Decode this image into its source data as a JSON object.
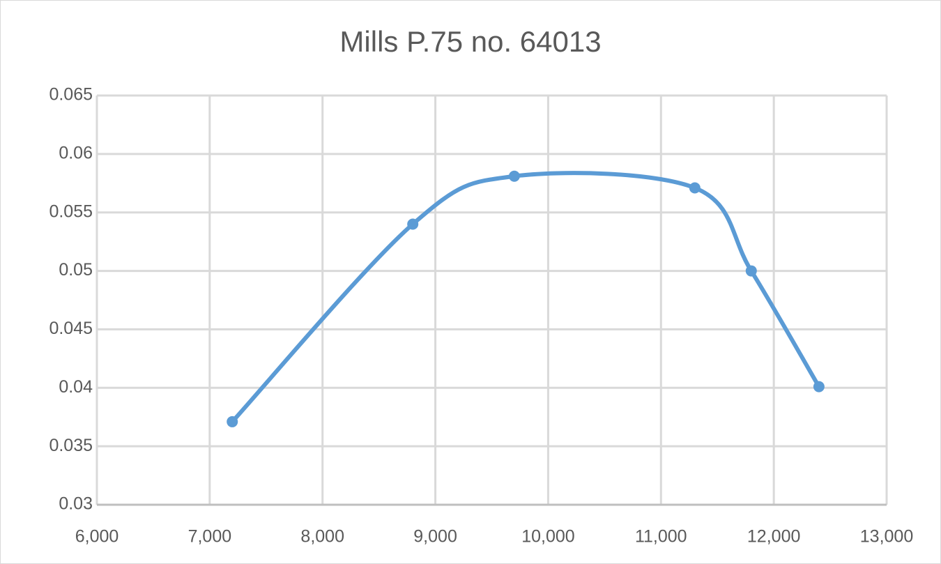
{
  "chart_data": {
    "type": "scatter",
    "title": "Mills P.75 no. 64013",
    "series": [
      {
        "name": "Mills P.75 no. 64013",
        "color": "#5b9bd5",
        "x": [
          7200,
          8800,
          9700,
          11300,
          11800,
          12400
        ],
        "values": [
          0.0371,
          0.054,
          0.0581,
          0.0571,
          0.05,
          0.0401
        ]
      }
    ],
    "xlim": [
      6000,
      13000
    ],
    "xticks": [
      {
        "value": 6000,
        "label": "6,000"
      },
      {
        "value": 7000,
        "label": "7,000"
      },
      {
        "value": 8000,
        "label": "8,000"
      },
      {
        "value": 9000,
        "label": "9,000"
      },
      {
        "value": 10000,
        "label": "10,000"
      },
      {
        "value": 11000,
        "label": "11,000"
      },
      {
        "value": 12000,
        "label": "12,000"
      },
      {
        "value": 13000,
        "label": "13,000"
      }
    ],
    "ylim": [
      0.03,
      0.065
    ],
    "yticks": [
      0.03,
      0.035,
      0.04,
      0.045,
      0.05,
      0.055,
      0.06,
      0.065
    ],
    "grid": true,
    "smooth": true,
    "markers": true
  }
}
